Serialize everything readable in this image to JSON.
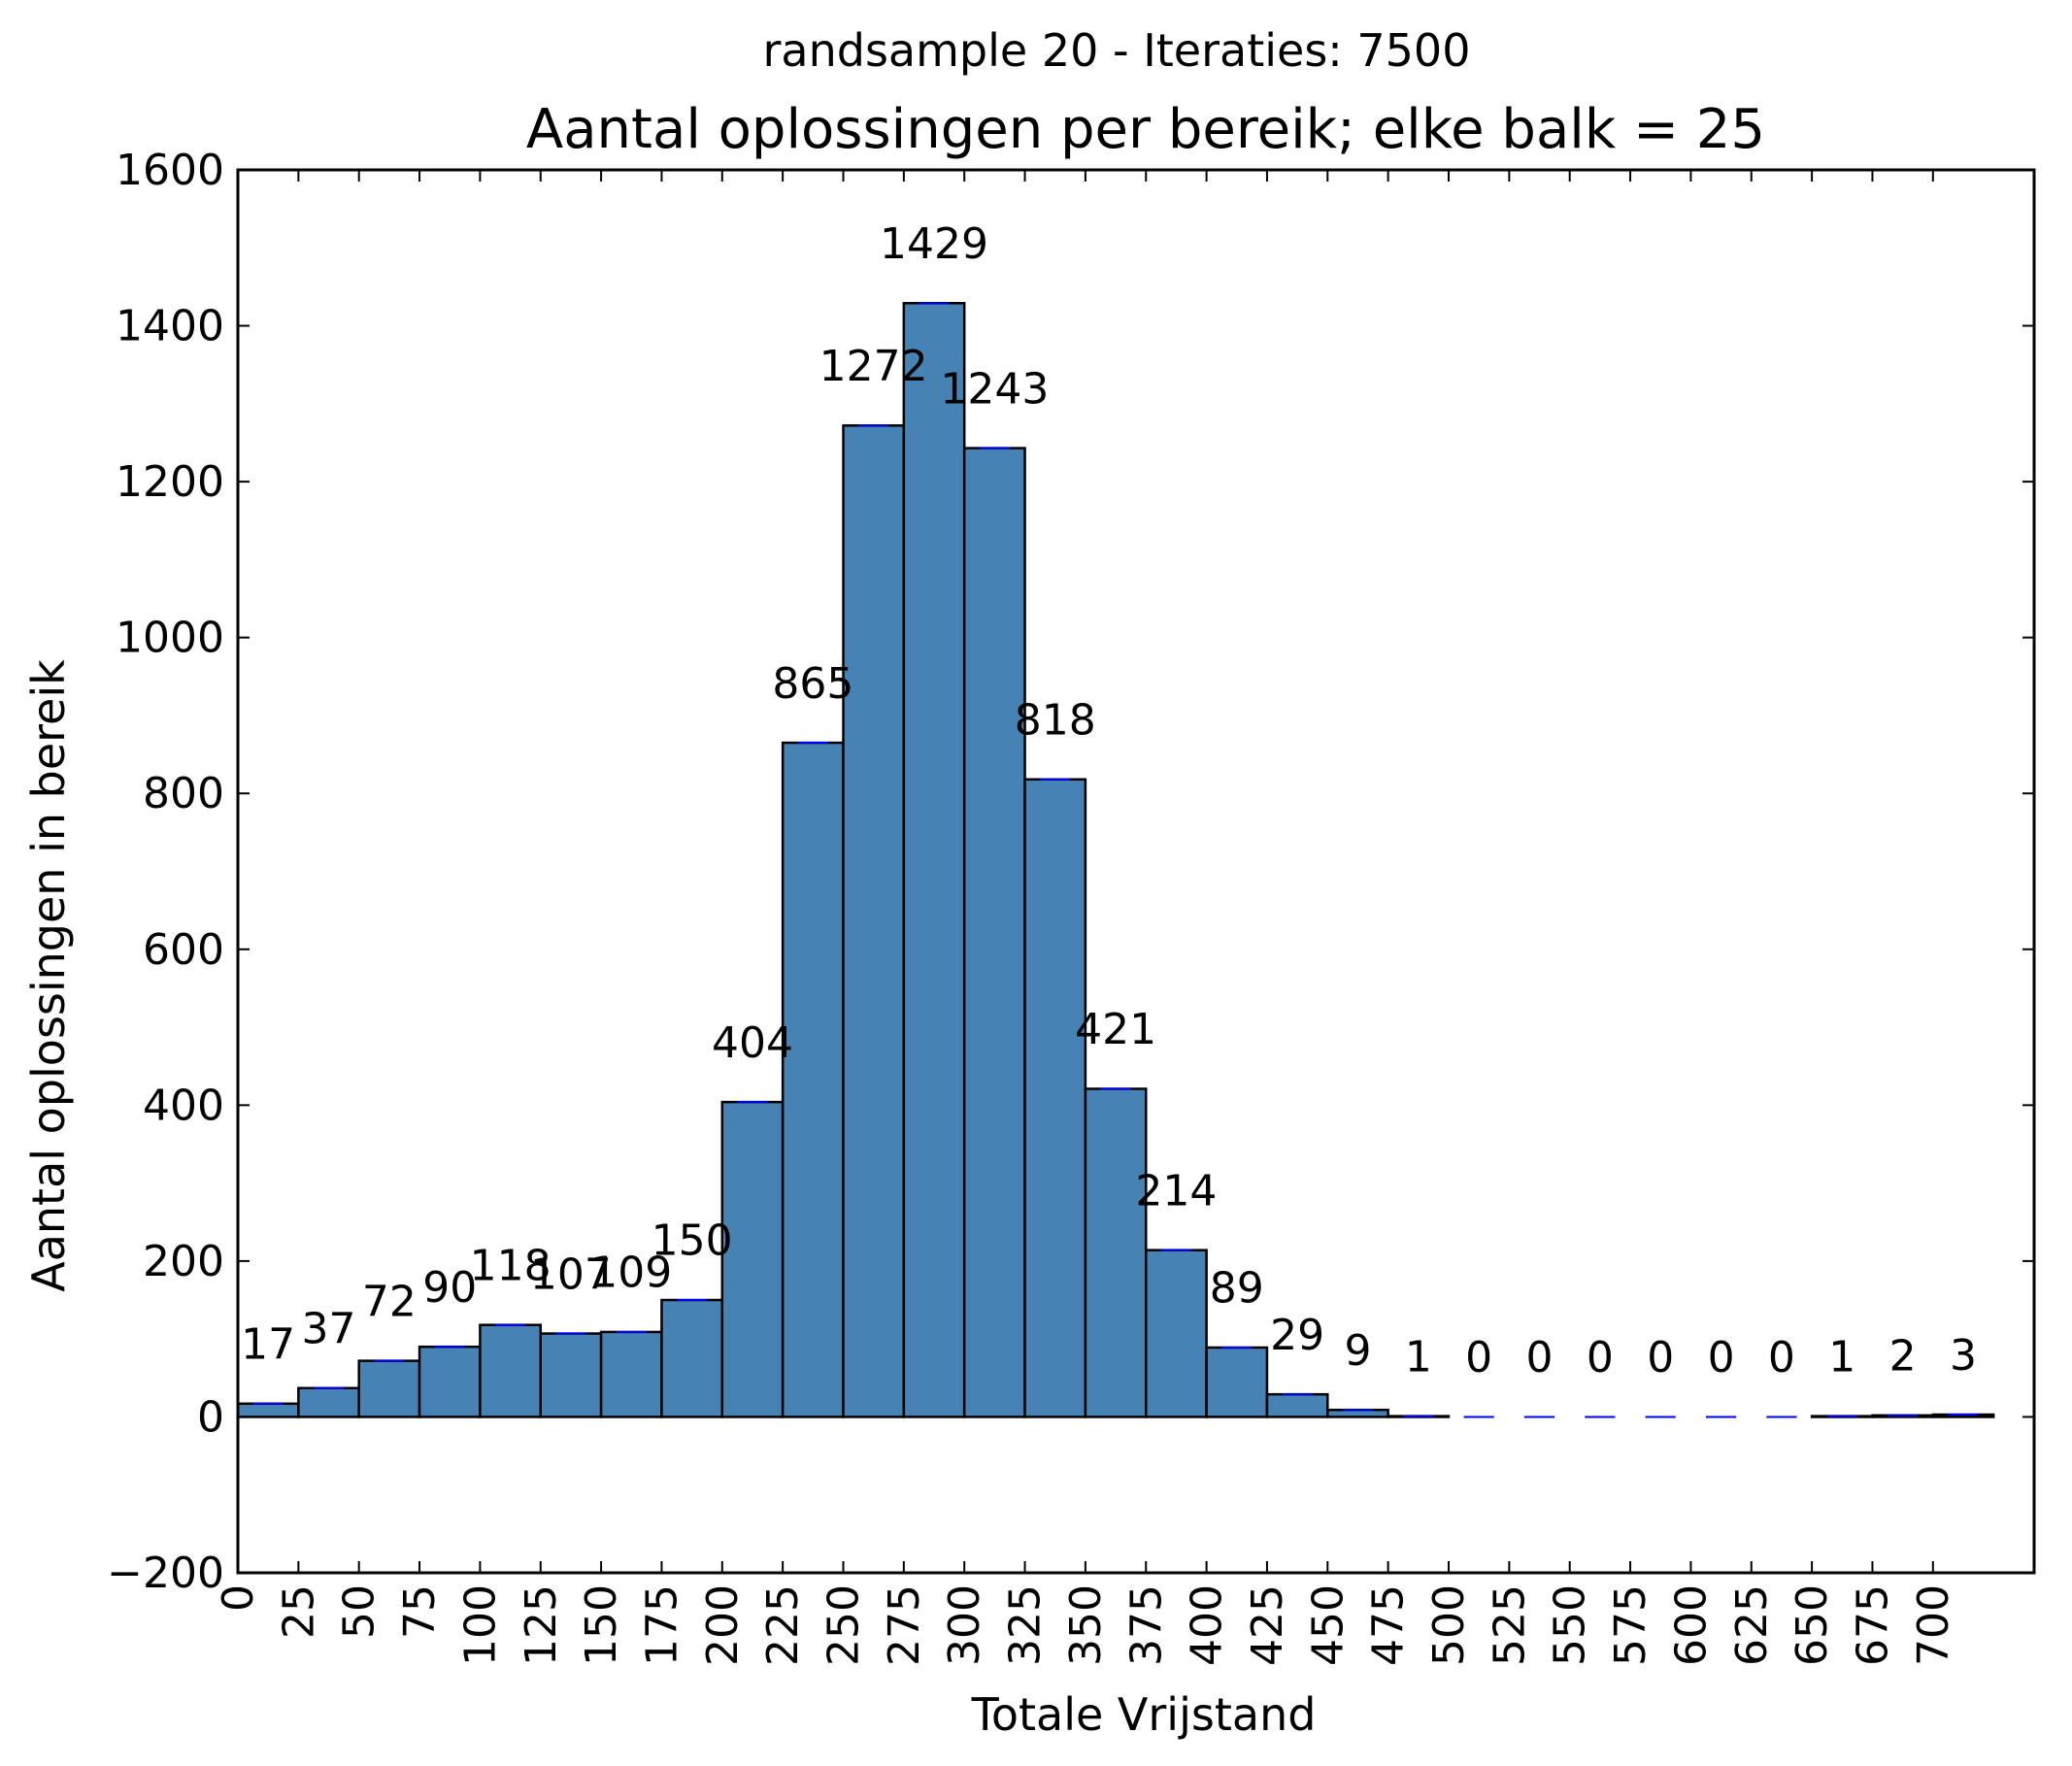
{
  "chart_data": {
    "type": "bar",
    "suptitle": "randsample 20 - Iteraties: 7500",
    "title": "Aantal oplossingen per bereik; elke balk = 25",
    "xlabel": "Totale Vrijstand",
    "ylabel": "Aantal oplossingen in bereik",
    "bin_width": 25,
    "xlim": [
      0,
      725
    ],
    "ylim": [
      -200,
      1600
    ],
    "x_ticks": [
      0,
      25,
      50,
      75,
      100,
      125,
      150,
      175,
      200,
      225,
      250,
      275,
      300,
      325,
      350,
      375,
      400,
      425,
      450,
      475,
      500,
      525,
      550,
      575,
      600,
      625,
      650,
      675,
      700
    ],
    "y_ticks": [
      -200,
      0,
      200,
      400,
      600,
      800,
      1000,
      1200,
      1400,
      1600
    ],
    "y_tick_labels": [
      "−200",
      "0",
      "200",
      "400",
      "600",
      "800",
      "1000",
      "1200",
      "1400",
      "1600"
    ],
    "bin_starts": [
      0,
      25,
      50,
      75,
      100,
      125,
      150,
      175,
      200,
      225,
      250,
      275,
      300,
      325,
      350,
      375,
      400,
      425,
      450,
      475,
      500,
      525,
      550,
      575,
      600,
      625,
      650,
      675,
      700
    ],
    "values": [
      17,
      37,
      72,
      90,
      118,
      107,
      109,
      150,
      404,
      865,
      1272,
      1429,
      1243,
      818,
      421,
      214,
      89,
      29,
      9,
      1,
      0,
      0,
      0,
      0,
      0,
      0,
      1,
      2,
      3
    ],
    "grid": false,
    "colors": {
      "bar_fill": "#4682b4",
      "bar_edge": "#000000",
      "bar_top_line": "#0000ff",
      "axes": "#000000",
      "background": "#ffffff"
    }
  }
}
